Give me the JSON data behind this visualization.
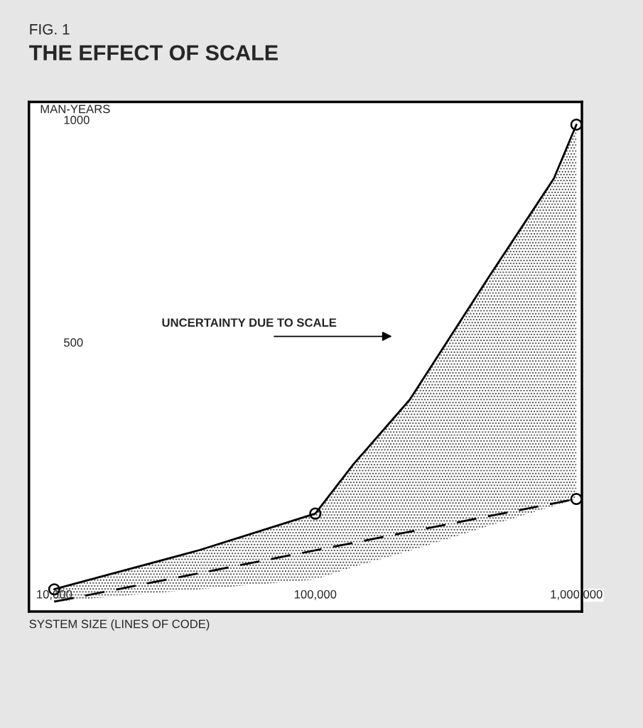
{
  "chart_data": {
    "type": "line",
    "title": "THE EFFECT OF SCALE",
    "subtitle": "FIG. 1",
    "xlabel": "SYSTEM SIZE (LINES OF CODE)",
    "ylabel": "MAN-YEARS",
    "log": "x",
    "xlim": [
      8000,
      1050000
    ],
    "ylim": [
      -105,
      1040
    ],
    "xticks": [
      {
        "value": 10000,
        "label": "10,000"
      },
      {
        "value": 100000,
        "label": "100,000"
      },
      {
        "value": 1000000,
        "label": "1,000,000"
      }
    ],
    "yticks": [
      500,
      1000
    ],
    "grid": false,
    "series": [
      {
        "color": "#000000",
        "line_style": "solid",
        "marker": "none",
        "x": [
          10000,
          36000,
          100000,
          140000,
          230000,
          460000,
          820000,
          1000000
        ],
        "values": [
          -55,
          33,
          115,
          226,
          371,
          645,
          868,
          989
        ],
        "lower": [
          -83,
          -55,
          -33,
          -5,
          31,
          87,
          132,
          148
        ],
        "upper": [
          -55,
          33,
          115,
          226,
          371,
          645,
          868,
          989
        ]
      },
      {
        "color": "#000000",
        "line_style": "dashed",
        "marker": "none",
        "x": [
          10000,
          1000000
        ],
        "values": [
          -83,
          148
        ]
      },
      {
        "type": "scatter",
        "color": "#000000",
        "marker": "circle",
        "x": [
          10000,
          100000,
          1000000,
          1000000
        ],
        "values": [
          -55,
          115,
          989,
          148
        ]
      }
    ],
    "annotations": [
      "UNCERTAINTY DUE TO SCALE"
    ]
  }
}
